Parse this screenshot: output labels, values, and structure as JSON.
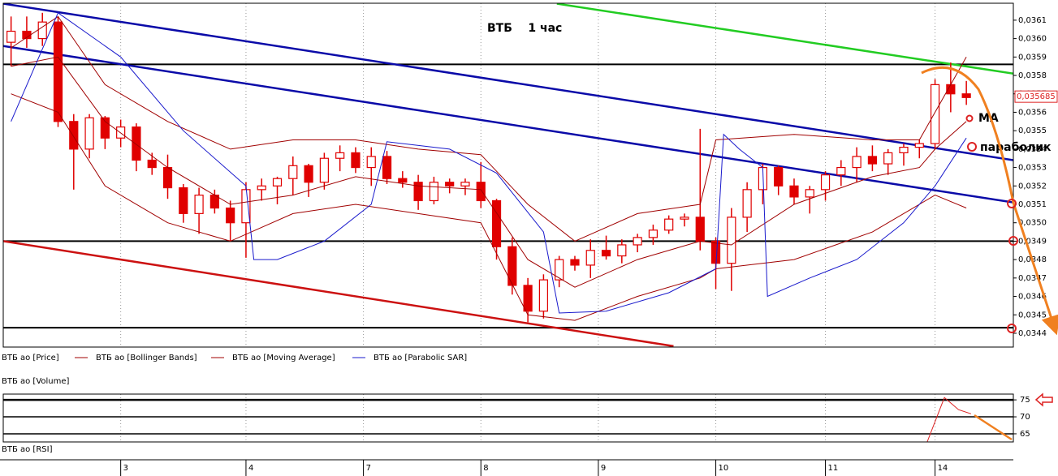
{
  "chart_data": [
    {
      "type": "candlestick",
      "title": "ВТБ    1 час",
      "annotations": [
        "MA",
        "параболик"
      ],
      "xlim": [
        -0.5,
        64
      ],
      "xticks": [
        {
          "value": 7,
          "label": "3"
        },
        {
          "value": 15,
          "label": "4"
        },
        {
          "value": 22.5,
          "label": "7"
        },
        {
          "value": 30,
          "label": "8"
        },
        {
          "value": 37.5,
          "label": "9"
        },
        {
          "value": 45,
          "label": "10"
        },
        {
          "value": 52,
          "label": "11"
        },
        {
          "value": 59,
          "label": "14"
        }
      ],
      "ylim": [
        0.034325,
        0.036192
      ],
      "yticks": [
        {
          "value": 0.0344,
          "label": "0,0344"
        },
        {
          "value": 0.0345,
          "label": "0,0345"
        },
        {
          "value": 0.0346,
          "label": "0,0346"
        },
        {
          "value": 0.0347,
          "label": "0,0347"
        },
        {
          "value": 0.0348,
          "label": "0,0348"
        },
        {
          "value": 0.0349,
          "label": "0,0349"
        },
        {
          "value": 0.035,
          "label": "0,0350"
        },
        {
          "value": 0.0351,
          "label": "0,0351"
        },
        {
          "value": 0.0352,
          "label": "0,0352"
        },
        {
          "value": 0.0353,
          "label": "0,0353"
        },
        {
          "value": 0.0354,
          "label": "0,0354"
        },
        {
          "value": 0.0355,
          "label": "0,0355"
        },
        {
          "value": 0.0356,
          "label": "0,0356"
        },
        {
          "value": 0.0357,
          "label": "0,0357"
        },
        {
          "value": 0.0358,
          "label": "0,0358"
        },
        {
          "value": 0.0359,
          "label": "0,0359"
        },
        {
          "value": 0.036,
          "label": "0,0360"
        },
        {
          "value": 0.0361,
          "label": "0,0361"
        }
      ],
      "grid": true,
      "last_price": {
        "value": 0.035685,
        "label": "0,035685"
      },
      "series": [
        {
          "name": "ВТБ ао [Price]",
          "color": "#e00000",
          "open": [
            0.03598,
            0.03604,
            0.036,
            0.03609,
            0.03555,
            0.0354,
            0.03557,
            0.03546,
            0.03552,
            0.03534,
            0.0353,
            0.03519,
            0.03505,
            0.03515,
            0.03508,
            0.035,
            0.03518,
            0.0352,
            0.03524,
            0.03531,
            0.03522,
            0.03535,
            0.03538,
            0.0353,
            0.03536,
            0.03524,
            0.03522,
            0.03512,
            0.03522,
            0.0352,
            0.03522,
            0.03512,
            0.03487,
            0.03466,
            0.03452,
            0.03469,
            0.0348,
            0.03477,
            0.03485,
            0.03482,
            0.03488,
            0.03492,
            0.03496,
            0.03502,
            0.03503,
            0.0349,
            0.03478,
            0.03503,
            0.03518,
            0.0353,
            0.0352,
            0.03514,
            0.03518,
            0.03526,
            0.0353,
            0.03536,
            0.03532,
            0.03538,
            0.03541,
            0.03543,
            0.03575,
            0.0357
          ],
          "high": [
            0.03612,
            0.03612,
            0.03614,
            0.03612,
            0.03559,
            0.03559,
            0.03558,
            0.03556,
            0.03554,
            0.03538,
            0.03537,
            0.03521,
            0.03519,
            0.03518,
            0.03512,
            0.03522,
            0.03524,
            0.03525,
            0.03536,
            0.03532,
            0.03538,
            0.03542,
            0.03541,
            0.03541,
            0.03539,
            0.03528,
            0.03526,
            0.03525,
            0.03524,
            0.03524,
            0.03533,
            0.03513,
            0.03492,
            0.0347,
            0.03472,
            0.03482,
            0.03482,
            0.03491,
            0.03493,
            0.03491,
            0.03494,
            0.03499,
            0.03504,
            0.03505,
            0.03551,
            0.03492,
            0.03508,
            0.03522,
            0.03532,
            0.03531,
            0.03524,
            0.0352,
            0.03528,
            0.03534,
            0.03541,
            0.03542,
            0.0354,
            0.03543,
            0.03545,
            0.03578,
            0.03587,
            0.03577
          ],
          "low": [
            0.03585,
            0.03595,
            0.03596,
            0.03552,
            0.03518,
            0.03535,
            0.0354,
            0.03541,
            0.03528,
            0.03526,
            0.03513,
            0.035,
            0.03494,
            0.03505,
            0.0349,
            0.03481,
            0.03512,
            0.0351,
            0.03515,
            0.03514,
            0.03518,
            0.03528,
            0.03527,
            0.0352,
            0.03521,
            0.03519,
            0.03507,
            0.0351,
            0.03516,
            0.03515,
            0.03508,
            0.0348,
            0.03461,
            0.03446,
            0.03448,
            0.03465,
            0.03474,
            0.0347,
            0.0348,
            0.03478,
            0.03484,
            0.03488,
            0.03494,
            0.03498,
            0.03485,
            0.03464,
            0.03463,
            0.03495,
            0.0351,
            0.03515,
            0.0351,
            0.03505,
            0.03512,
            0.0352,
            0.03522,
            0.03528,
            0.03526,
            0.03531,
            0.03535,
            0.0354,
            0.0356,
            0.03564
          ],
          "close": [
            0.03604,
            0.036,
            0.03609,
            0.03555,
            0.0354,
            0.03557,
            0.03546,
            0.03552,
            0.03534,
            0.0353,
            0.03519,
            0.03505,
            0.03515,
            0.03508,
            0.035,
            0.03518,
            0.0352,
            0.03524,
            0.03531,
            0.03522,
            0.03535,
            0.03538,
            0.0353,
            0.03536,
            0.03524,
            0.03522,
            0.03512,
            0.03522,
            0.0352,
            0.03522,
            0.03512,
            0.03487,
            0.03466,
            0.03452,
            0.03469,
            0.0348,
            0.03477,
            0.03485,
            0.03482,
            0.03488,
            0.03492,
            0.03496,
            0.03502,
            0.03503,
            0.0349,
            0.03478,
            0.03503,
            0.03518,
            0.0353,
            0.0352,
            0.03514,
            0.03518,
            0.03526,
            0.0353,
            0.03536,
            0.03532,
            0.03538,
            0.03541,
            0.03543,
            0.03575,
            0.0357,
            0.03568
          ]
        },
        {
          "name": "ВТБ ао [Bollinger Bands]",
          "color": "#a00000",
          "x": [
            0,
            3,
            6,
            10,
            14,
            18,
            22,
            26,
            30,
            33,
            36,
            40,
            44,
            45,
            50,
            55,
            58,
            59,
            61
          ],
          "upper": [
            0.03595,
            0.03612,
            0.03575,
            0.03555,
            0.0354,
            0.03545,
            0.03545,
            0.0354,
            0.03537,
            0.0351,
            0.0349,
            0.03505,
            0.0351,
            0.03545,
            0.03548,
            0.03545,
            0.03545,
            0.0356,
            0.0359
          ],
          "lower": [
            0.0357,
            0.0356,
            0.0352,
            0.035,
            0.0349,
            0.03505,
            0.0351,
            0.03505,
            0.035,
            0.0345,
            0.03447,
            0.0346,
            0.0347,
            0.03475,
            0.0348,
            0.03495,
            0.0351,
            0.03515,
            0.03508
          ]
        },
        {
          "name": "ВТБ ао [Moving Average]",
          "color": "#a00000",
          "x": [
            0,
            3,
            6,
            10,
            14,
            18,
            22,
            26,
            30,
            33,
            36,
            40,
            44,
            46,
            50,
            55,
            58,
            59,
            61
          ],
          "values": [
            0.03585,
            0.0359,
            0.03555,
            0.0353,
            0.0351,
            0.03515,
            0.03525,
            0.0352,
            0.03518,
            0.0348,
            0.03465,
            0.0348,
            0.0349,
            0.03488,
            0.0351,
            0.03525,
            0.0353,
            0.0354,
            0.03555
          ]
        },
        {
          "name": "ВТБ ао [Parabolic SAR]",
          "color": "#1a1acc",
          "x": [
            0,
            3,
            7,
            11,
            15,
            15.5,
            17,
            20,
            23,
            24,
            28,
            31,
            34,
            35,
            38,
            42,
            45,
            45.5,
            46.5,
            48,
            48.3,
            51,
            54,
            57,
            59,
            61
          ],
          "values": [
            0.03555,
            0.03614,
            0.0359,
            0.0355,
            0.0352,
            0.0348,
            0.0348,
            0.0349,
            0.0351,
            0.03544,
            0.0354,
            0.03527,
            0.03495,
            0.03451,
            0.03452,
            0.03462,
            0.03475,
            0.03548,
            0.0354,
            0.0353,
            0.0346,
            0.0347,
            0.0348,
            0.035,
            0.0352,
            0.03546
          ]
        }
      ],
      "lines": [
        {
          "color": "#0a0aa8",
          "x": [
            -0.5,
            64
          ],
          "values": [
            0.03619,
            0.03534
          ]
        },
        {
          "color": "#0a0aa8",
          "x": [
            -0.5,
            64
          ],
          "values": [
            0.03596,
            0.03511
          ]
        },
        {
          "color": "#22cc22",
          "x": [
            34.85,
            64
          ],
          "values": [
            0.03619,
            0.03581
          ]
        },
        {
          "color": "#cc1111",
          "x": [
            -0.5,
            42.3
          ],
          "values": [
            0.0349,
            0.03433
          ]
        }
      ],
      "levels": [
        {
          "value": 0.03586,
          "color": "#000000"
        },
        {
          "value": 0.0349,
          "color": "#000000"
        },
        {
          "value": 0.03443,
          "color": "#000000"
        }
      ]
    },
    {
      "type": "line",
      "title": "ВТБ ао [Volume]",
      "ylim": [
        62.6,
        76.7
      ],
      "yticks": [
        65,
        70,
        75
      ],
      "grid": true,
      "series": [
        {
          "name": "ВТБ ао [RSI]",
          "color": "#dd2222",
          "x": [
            58.5,
            59.6,
            60.5,
            61.3
          ],
          "values": [
            62.6,
            75.7,
            72.1,
            70.9
          ]
        }
      ]
    }
  ]
}
